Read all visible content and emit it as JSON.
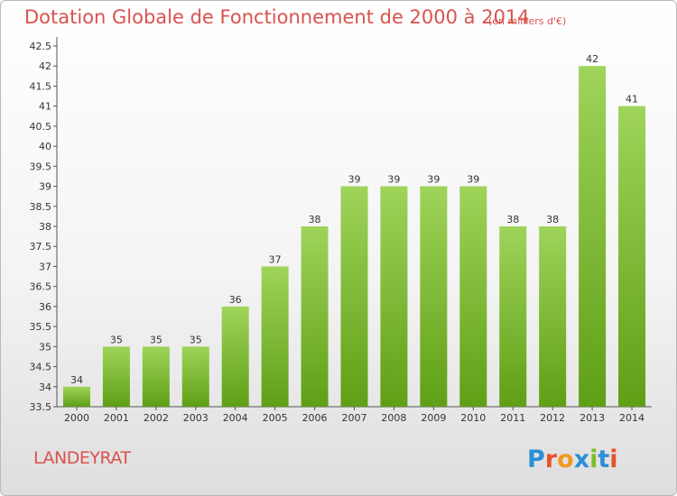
{
  "title": "Dotation Globale de Fonctionnement de 2000 à 2014",
  "unit": "(en milliers d'€)",
  "commune": "LANDEYRAT",
  "logo_text": "Proxiti",
  "colors": {
    "bar_top": "#9fd45a",
    "bar_bottom": "#5f9f16",
    "title": "#d9534f"
  },
  "chart_data": {
    "type": "bar",
    "categories": [
      "2000",
      "2001",
      "2002",
      "2003",
      "2004",
      "2005",
      "2006",
      "2007",
      "2008",
      "2009",
      "2010",
      "2011",
      "2012",
      "2013",
      "2014"
    ],
    "values": [
      34,
      35,
      35,
      35,
      36,
      37,
      38,
      39,
      39,
      39,
      39,
      38,
      38,
      42,
      41
    ],
    "ylim": [
      33.5,
      42.5
    ],
    "yticks": [
      "33.5",
      "34",
      "34.5",
      "35",
      "35.5",
      "36",
      "36.5",
      "37",
      "37.5",
      "38",
      "38.5",
      "39",
      "39.5",
      "40",
      "40.5",
      "41",
      "41.5",
      "42",
      "42.5"
    ],
    "grid": false,
    "legend": "none"
  }
}
